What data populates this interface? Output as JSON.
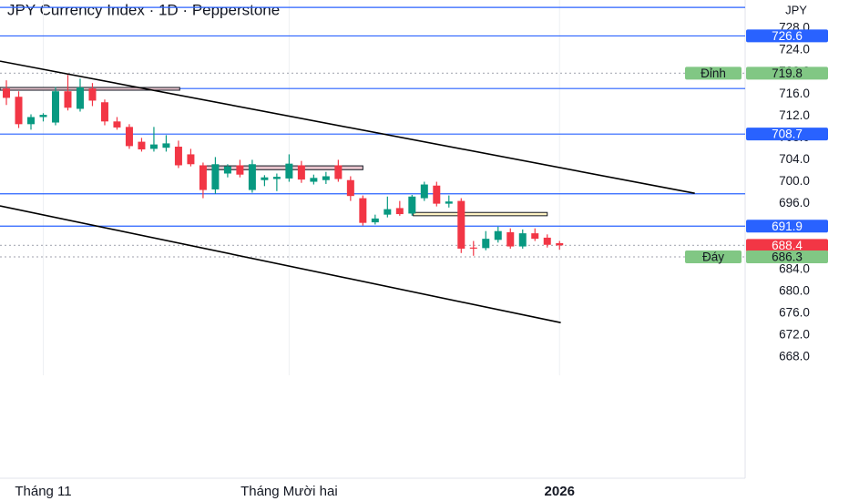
{
  "chart_data": {
    "type": "candlestick",
    "title": "JPY Currency Index · 1D · Pepperstone",
    "unit_label": "JPY",
    "categories": [
      null,
      null,
      null,
      "Tháng 11",
      null,
      null,
      null,
      null,
      null,
      null,
      null,
      null,
      null,
      null,
      null,
      null,
      null,
      null,
      null,
      null,
      null,
      null,
      null,
      "Tháng Mười hai",
      null,
      null,
      null,
      null,
      null,
      null,
      null,
      null,
      null,
      null,
      null,
      null,
      null,
      null,
      null,
      null,
      null,
      null,
      null,
      null,
      null,
      "2026"
    ],
    "open": [
      717.0,
      715.5,
      710.5,
      711.8,
      710.8,
      716.5,
      713.3,
      717.0,
      714.5,
      711.0,
      710.0,
      707.3,
      706.0,
      706.2,
      706.4,
      705.0,
      703.0,
      698.6,
      701.5,
      703.0,
      698.5,
      700.3,
      700.5,
      700.6,
      703.0,
      700.0,
      700.3,
      703.0,
      700.3,
      697.0,
      692.6,
      694.0,
      695.2,
      694.2,
      697.0,
      699.3,
      696.0,
      696.5,
      688.0,
      687.9,
      689.4,
      690.8,
      688.2,
      690.6,
      689.8,
      688.8
    ],
    "high": [
      718.5,
      716.5,
      712.3,
      712.5,
      717.3,
      719.5,
      718.8,
      718.0,
      715.0,
      711.8,
      710.5,
      708.0,
      710.0,
      708.5,
      707.5,
      706.0,
      703.5,
      704.5,
      703.2,
      704.0,
      704.0,
      701.2,
      701.5,
      705.0,
      703.8,
      701.3,
      701.8,
      704.0,
      701.0,
      697.5,
      694.0,
      697.3,
      696.5,
      697.6,
      700.0,
      700.0,
      697.5,
      697.0,
      689.2,
      691.0,
      691.8,
      691.5,
      691.3,
      691.5,
      690.4,
      689.2
    ],
    "low": [
      714.0,
      709.8,
      709.5,
      711.0,
      710.3,
      713.0,
      712.8,
      713.8,
      710.3,
      709.5,
      706.0,
      705.5,
      705.5,
      705.5,
      702.5,
      702.8,
      697.0,
      697.8,
      700.8,
      700.8,
      698.0,
      699.2,
      698.3,
      700.0,
      699.8,
      699.5,
      699.6,
      700.0,
      696.5,
      692.0,
      692.2,
      693.5,
      693.8,
      693.8,
      696.5,
      695.5,
      695.3,
      687.0,
      686.5,
      687.5,
      688.9,
      687.8,
      687.8,
      689.2,
      688.0,
      687.6
    ],
    "close": [
      715.3,
      710.5,
      711.8,
      712.2,
      716.5,
      713.5,
      717.2,
      714.8,
      711.0,
      709.9,
      706.5,
      705.9,
      706.8,
      707.0,
      703.0,
      703.2,
      698.5,
      703.2,
      702.8,
      701.3,
      703.2,
      700.8,
      700.9,
      703.3,
      700.4,
      700.7,
      701.0,
      700.5,
      697.4,
      692.5,
      693.3,
      695.0,
      694.1,
      697.3,
      699.5,
      696.0,
      696.4,
      687.8,
      687.9,
      689.6,
      691.0,
      688.2,
      690.6,
      689.6,
      688.5,
      688.4
    ],
    "up_color": "#089981",
    "down_color": "#f23645",
    "xlim": [
      -0.52,
      60.1
    ],
    "ylim": [
      664.7,
      733.15
    ],
    "yticks": [
      {
        "value": 728,
        "label": "728.0"
      },
      {
        "value": 724,
        "label": "724.0"
      },
      {
        "value": 720,
        "label": "720.0"
      },
      {
        "value": 716,
        "label": "716.0"
      },
      {
        "value": 712,
        "label": "712.0"
      },
      {
        "value": 708,
        "label": "708.0"
      },
      {
        "value": 704,
        "label": "704.0"
      },
      {
        "value": 700,
        "label": "700.0"
      },
      {
        "value": 696,
        "label": "696.0"
      },
      {
        "value": 692,
        "label": "692.0"
      },
      {
        "value": 688,
        "label": "688.0"
      },
      {
        "value": 684,
        "label": "684.0"
      },
      {
        "value": 680,
        "label": "680.0"
      },
      {
        "value": 676,
        "label": "676.0"
      },
      {
        "value": 672,
        "label": "672.0"
      },
      {
        "value": 668,
        "label": "668.0"
      }
    ],
    "levels": [
      {
        "value": 731.8,
        "color": "#2962ff",
        "style": "solid"
      },
      {
        "value": 726.6,
        "color": "#2962ff",
        "style": "solid",
        "badge": "#2962ff"
      },
      {
        "value": 719.8,
        "color": "#b2b5be",
        "style": "dotted",
        "badge": "#81c784",
        "name": "Đỉnh"
      },
      {
        "value": 717.0,
        "color": "#2962ff",
        "style": "solid"
      },
      {
        "value": 708.7,
        "color": "#2962ff",
        "style": "solid",
        "badge": "#2962ff"
      },
      {
        "value": 697.8,
        "color": "#2962ff",
        "style": "solid"
      },
      {
        "value": 691.9,
        "color": "#2962ff",
        "style": "solid",
        "badge": "#2962ff"
      },
      {
        "value": 688.4,
        "color": "#b2b5be",
        "style": "dotted",
        "badge": "#f23645"
      },
      {
        "value": 686.3,
        "color": "#b2b5be",
        "style": "dotted",
        "badge": "#81c784",
        "name": "Đáy"
      }
    ],
    "trendlines": [
      {
        "x": [
          -0.52,
          56.0
        ],
        "y": [
          722.0,
          697.9
        ],
        "color": "#000000"
      },
      {
        "x": [
          -0.52,
          45.1
        ],
        "y": [
          695.6,
          674.3
        ],
        "color": "#000000"
      }
    ],
    "zones": [
      {
        "from": -0.52,
        "to": 14.1,
        "top": 717.2,
        "bottom": 716.7,
        "color": "#e8c4cc"
      },
      {
        "from": 15.9,
        "to": 29.0,
        "top": 702.9,
        "bottom": 702.2,
        "color": "#e8c4cc"
      },
      {
        "from": 33.1,
        "to": 44.0,
        "top": 694.4,
        "bottom": 693.8,
        "color": "#fff3c4"
      }
    ],
    "grid": false
  }
}
